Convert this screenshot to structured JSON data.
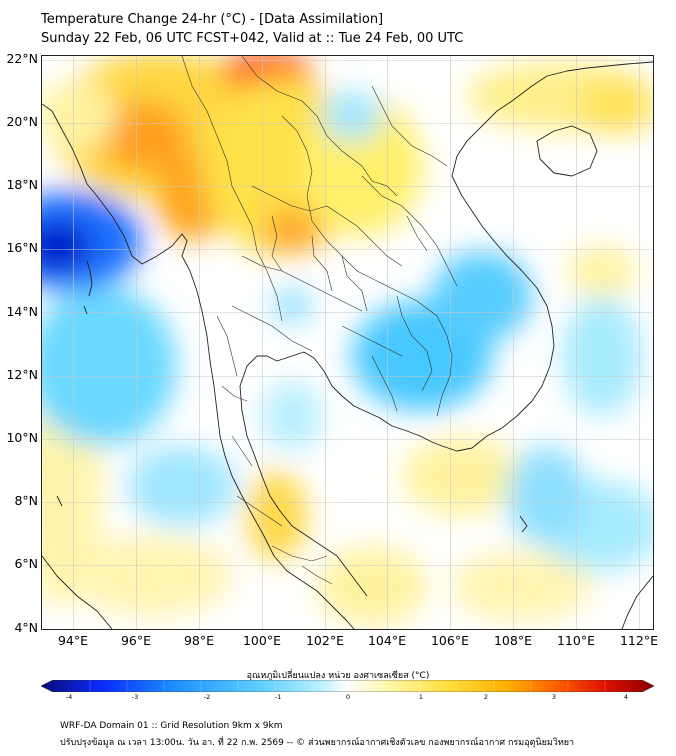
{
  "header": {
    "title": "Temperature Change 24-hr (°C) - [Data Assimilation]",
    "subtitle": "Sunday 22 Feb, 06 UTC FCST+042, Valid at :: Tue 24 Feb, 00 UTC"
  },
  "map": {
    "lat_labels": [
      "22°N",
      "20°N",
      "18°N",
      "16°N",
      "14°N",
      "12°N",
      "10°N",
      "8°N",
      "6°N",
      "4°N"
    ],
    "lon_labels": [
      "94°E",
      "96°E",
      "98°E",
      "100°E",
      "102°E",
      "104°E",
      "106°E",
      "108°E",
      "110°E",
      "112°E"
    ],
    "lat_range": [
      4,
      22.2
    ],
    "lon_range": [
      93,
      112.5
    ]
  },
  "colorbar": {
    "label": "อุณหภูมิเปลี่ยนแปลง หน่วย องศาเซลเซียส (°C)",
    "ticks": [
      "-4",
      "-3",
      "-2",
      "-1",
      "0",
      "1",
      "2",
      "3",
      "4"
    ],
    "colors": [
      "#0a0a78",
      "#0a2aff",
      "#1e90ff",
      "#5fd0ff",
      "#bff0ff",
      "#ffffff",
      "#fff8b0",
      "#ffe040",
      "#ffb000",
      "#ff6000",
      "#e01000",
      "#8b0000"
    ]
  },
  "footer": {
    "line1": "WRF-DA Domain 01 :: Grid Resolution 9km x 9km",
    "line2": "ปรับปรุงข้อมูล ณ เวลา 13:00น. วัน อา. ที่ 22 ก.พ. 2569 -- © ส่วนพยากรณ์อากาศเชิงตัวเลข กองพยากรณ์อากาศ กรมอุตุนิยมวิทยา"
  }
}
